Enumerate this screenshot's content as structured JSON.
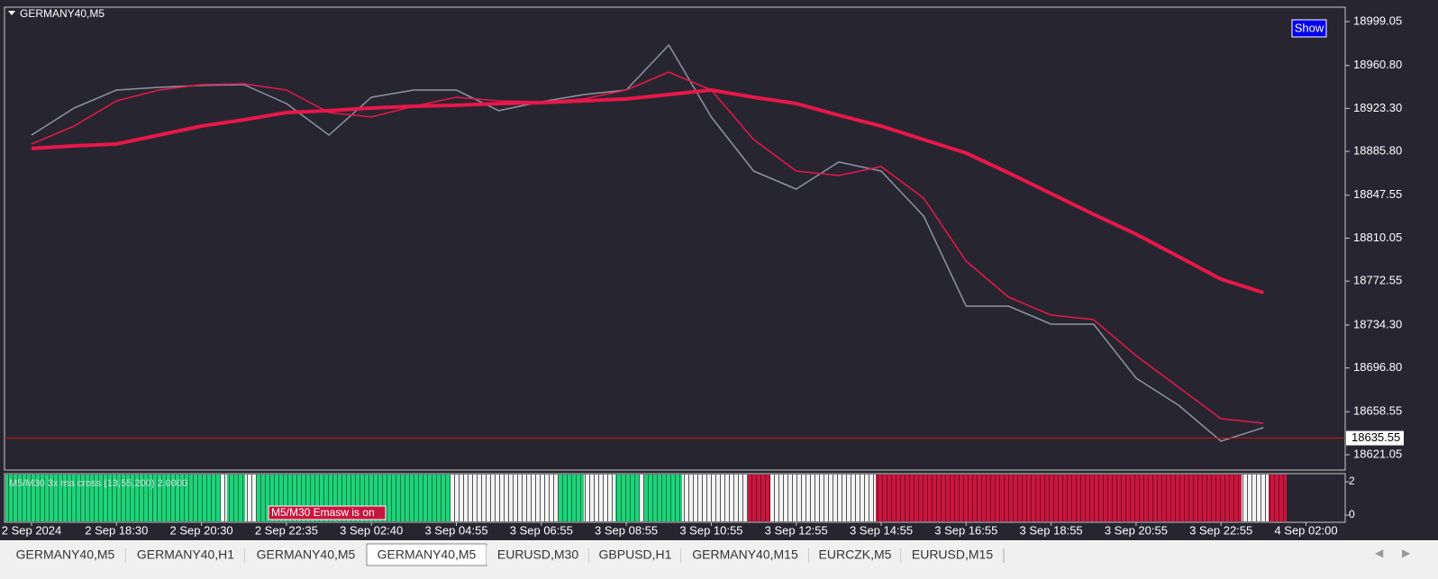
{
  "header": {
    "symbol": "GERMANY40,M5",
    "button": "Show"
  },
  "chart_data": {
    "type": "line",
    "categories": [
      "2 Sep 2024",
      null,
      "2 Sep 18:30",
      null,
      "2 Sep 20:30",
      null,
      "2 Sep 22:35",
      null,
      "3 Sep 02:40",
      null,
      "3 Sep 04:55",
      null,
      "3 Sep 06:55",
      null,
      "3 Sep 08:55",
      null,
      "3 Sep 10:55",
      null,
      "3 Sep 12:55",
      null,
      "3 Sep 14:55",
      null,
      "3 Sep 16:55",
      null,
      "3 Sep 18:55",
      null,
      "3 Sep 20:55",
      null,
      "3 Sep 22:55",
      null,
      "4 Sep 02:00"
    ],
    "series": [
      {
        "color": "#8d93a6",
        "values": [
          18900.0,
          18923.6,
          18939.3,
          18941.7,
          18943.3,
          18944.0,
          18927.5,
          18900.0,
          18933.0,
          18939.3,
          18939.3,
          18921.3,
          18929.1,
          18935.4,
          18939.3,
          18978.6,
          18915.8,
          18868.6,
          18852.9,
          18876.5,
          18868.6,
          18829.3,
          18750.7,
          18750.7,
          18735.0,
          18735.0,
          18687.9,
          18664.3,
          18632.9,
          18644.7,
          null
        ]
      },
      {
        "color": "#e8174a",
        "values": [
          18892.2,
          18907.9,
          18929.9,
          18939.3,
          18944.0,
          18944.8,
          18939.3,
          18919.7,
          18915.8,
          18925.2,
          18933.0,
          18929.9,
          18929.1,
          18931.5,
          18939.3,
          18955.0,
          18939.3,
          18896.1,
          18868.6,
          18864.7,
          18872.5,
          18845.0,
          18790.0,
          18758.6,
          18742.9,
          18739.0,
          18707.5,
          18680.0,
          18652.5,
          18648.6,
          null
        ]
      },
      {
        "color": "#e8174a",
        "values": [
          18888.3,
          18890.6,
          18892.2,
          18900.0,
          18907.9,
          18913.4,
          18919.7,
          18921.3,
          18923.6,
          18925.2,
          18926.0,
          18927.5,
          18928.3,
          18929.9,
          18931.5,
          18935.4,
          18939.3,
          18933.0,
          18927.5,
          18917.3,
          18907.9,
          18896.1,
          18884.3,
          18867.0,
          18849.0,
          18830.9,
          18813.6,
          18794.0,
          18774.3,
          18762.5,
          null
        ]
      }
    ],
    "ylim": [
      18607.7,
      19011.6
    ],
    "yticks": [
      18999.05,
      {
        "value": 18960.8,
        "label": "18960.80"
      },
      {
        "value": 18923.3,
        "label": "18923.30"
      },
      {
        "value": 18885.8,
        "label": "18885.80"
      },
      18847.55,
      18810.05,
      18772.55,
      {
        "value": 18734.3,
        "label": "18734.30"
      },
      {
        "value": 18696.8,
        "label": "18696.80"
      },
      18658.55,
      18621.05
    ],
    "current_price": 18635.55,
    "grid": false
  },
  "indicator": {
    "title": "M5/M30 3x ma cross (13,55,200) 2.0000",
    "alert": "M5/M30 Emasw is on",
    "ylim": [
      -0.43,
      2.49
    ],
    "yticks": [
      2,
      0
    ]
  },
  "tabs": [
    "GERMANY40,M5",
    "GERMANY40,H1",
    "GERMANY40,M5",
    "GERMANY40,M5",
    "EURUSD,M30",
    "GBPUSD,H1",
    "GERMANY40,M15",
    "EURCZK,M5",
    "EURUSD,M15"
  ],
  "active_tab": 3
}
